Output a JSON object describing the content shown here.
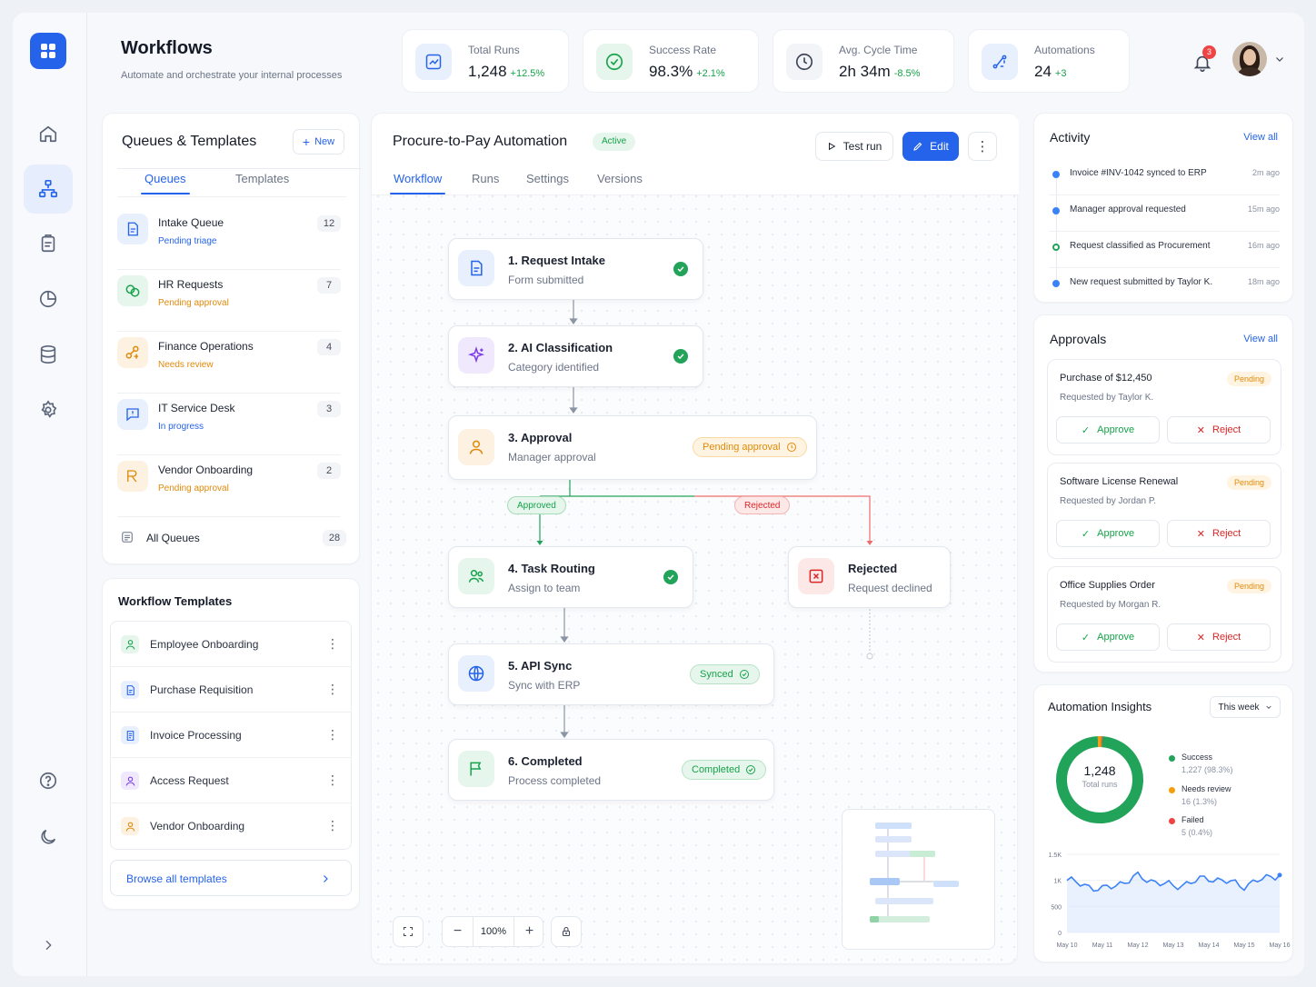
{
  "header": {
    "title": "Workflows",
    "subtitle": "Automate and orchestrate your internal processes",
    "notification_count": "3"
  },
  "stats": [
    {
      "label": "Total Runs",
      "value": "1,248",
      "change": "+12.5%"
    },
    {
      "label": "Success Rate",
      "value": "98.3%",
      "change": "+2.1%"
    },
    {
      "label": "Avg. Cycle Time",
      "value": "2h 34m",
      "change": "-8.5%"
    },
    {
      "label": "Automations",
      "value": "24",
      "change": "+3"
    }
  ],
  "queues_panel": {
    "title": "Queues & Templates",
    "new_label": "New",
    "tabs": [
      "Queues",
      "Templates"
    ],
    "queues": [
      {
        "name": "Intake Queue",
        "status": "Pending triage",
        "count": "12",
        "status_color": "#2563eb",
        "icon": "document-icon"
      },
      {
        "name": "HR Requests",
        "status": "Pending approval",
        "count": "7",
        "status_color": "#e08a0b",
        "icon": "users-circles-icon"
      },
      {
        "name": "Finance Operations",
        "status": "Needs review",
        "count": "4",
        "status_color": "#e08a0b",
        "icon": "finance-icon"
      },
      {
        "name": "IT Service Desk",
        "status": "In progress",
        "count": "3",
        "status_color": "#2563eb",
        "icon": "chat-alert-icon"
      },
      {
        "name": "Vendor Onboarding",
        "status": "Pending approval",
        "count": "2",
        "status_color": "#e08a0b",
        "icon": "vendor-icon"
      }
    ],
    "all_label": "All Queues",
    "all_count": "28"
  },
  "templates_panel": {
    "title": "Workflow Templates",
    "items": [
      {
        "name": "Employee Onboarding",
        "icon": "user-tree-icon"
      },
      {
        "name": "Purchase Requisition",
        "icon": "doc-list-icon"
      },
      {
        "name": "Invoice Processing",
        "icon": "invoice-icon"
      },
      {
        "name": "Access Request",
        "icon": "user-icon"
      },
      {
        "name": "Vendor Onboarding",
        "icon": "user-icon"
      }
    ],
    "browse_label": "Browse all templates"
  },
  "workflow": {
    "title": "Procure-to-Pay Automation",
    "status": "Active",
    "test_run": "Test run",
    "edit": "Edit",
    "tabs": [
      "Workflow",
      "Runs",
      "Settings",
      "Versions"
    ],
    "nodes": [
      {
        "title": "1. Request Intake",
        "sub": "Form submitted"
      },
      {
        "title": "2. AI Classification",
        "sub": "Category identified"
      },
      {
        "title": "3. Approval",
        "sub": "Manager approval",
        "badge": "Pending approval"
      },
      {
        "title": "4. Task Routing",
        "sub": "Assign to team"
      },
      {
        "title": "Rejected",
        "sub": "Request declined"
      },
      {
        "title": "5. API Sync",
        "sub": "Sync with ERP",
        "badge": "Synced"
      },
      {
        "title": "6. Completed",
        "sub": "Process completed",
        "badge": "Completed"
      }
    ],
    "branch_approved": "Approved",
    "branch_rejected": "Rejected",
    "zoom": "100%"
  },
  "activity": {
    "title": "Activity",
    "view_all": "View all",
    "items": [
      {
        "text": "Invoice #INV-1042 synced to ERP",
        "time": "2m ago",
        "color": "#3b82f6"
      },
      {
        "text": "Manager approval requested",
        "time": "15m ago",
        "color": "#3b82f6"
      },
      {
        "text": "Request classified as Procurement",
        "time": "16m ago",
        "color": "#22a35a"
      },
      {
        "text": "New request submitted by Taylor K.",
        "time": "18m ago",
        "color": "#3b82f6"
      }
    ]
  },
  "approvals": {
    "title": "Approvals",
    "view_all": "View all",
    "approve_label": "Approve",
    "reject_label": "Reject",
    "items": [
      {
        "title": "Purchase of $12,450",
        "by": "Requested by Taylor K.",
        "status": "Pending"
      },
      {
        "title": "Software License Renewal",
        "by": "Requested by Jordan P.",
        "status": "Pending"
      },
      {
        "title": "Office Supplies Order",
        "by": "Requested by Morgan R.",
        "status": "Pending"
      }
    ]
  },
  "insights": {
    "title": "Automation Insights",
    "range": "This week",
    "total_value": "1,248",
    "total_label": "Total runs",
    "legend": [
      {
        "name": "Success",
        "value": "1,227 (98.3%)",
        "color": "#22a35a"
      },
      {
        "name": "Needs review",
        "value": "16 (1.3%)",
        "color": "#f59e0b"
      },
      {
        "name": "Failed",
        "value": "5 (0.4%)",
        "color": "#ef4444"
      }
    ]
  },
  "chart_data": [
    {
      "type": "pie",
      "categories": [
        "Success",
        "Needs review",
        "Failed"
      ],
      "values": [
        1227,
        16,
        5
      ],
      "colors": [
        "#22a35a",
        "#f59e0b",
        "#ef4444"
      ]
    },
    {
      "type": "line",
      "x": [
        "May 10",
        "May 11",
        "May 12",
        "May 13",
        "May 14",
        "May 15",
        "May 16"
      ],
      "values": [
        1000,
        820,
        1070,
        880,
        1050,
        900,
        1130
      ],
      "yticks": [
        "1.5K",
        "1K",
        "500",
        "0"
      ],
      "ylim": [
        0,
        1500
      ],
      "color": "#3b82f6"
    }
  ]
}
